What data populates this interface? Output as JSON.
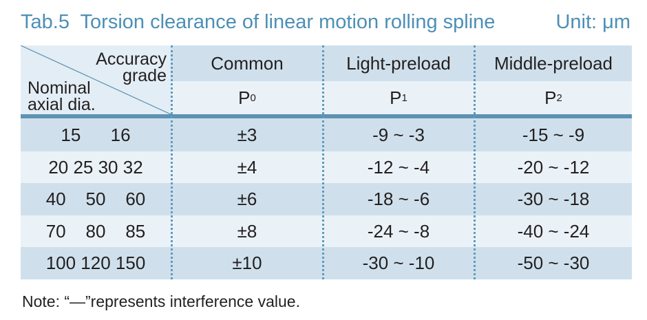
{
  "title": "Tab.5  Torsion clearance of linear motion rolling spline",
  "unit": "Unit: μm",
  "header": {
    "corner_top": "Accuracy\ngrade",
    "corner_bottom": "Nominal\naxial dia.",
    "grades": [
      {
        "name": "Common",
        "code": "P",
        "sub": "0"
      },
      {
        "name": "Light-preload",
        "code": "P",
        "sub": "1"
      },
      {
        "name": "Middle-preload",
        "code": "P",
        "sub": "2"
      }
    ]
  },
  "rows": [
    {
      "dia": "15      16",
      "common": "±3",
      "light": "-9 ~ -3",
      "middle": "-15 ~ -9"
    },
    {
      "dia": "20 25 30 32",
      "common": "±4",
      "light": "-12 ~ -4",
      "middle": "-20 ~ -12"
    },
    {
      "dia": "40    50    60",
      "common": "±6",
      "light": "-18 ~ -6",
      "middle": "-30 ~ -18"
    },
    {
      "dia": "70    80    85",
      "common": "±8",
      "light": "-24 ~ -8",
      "middle": "-40 ~ -24"
    },
    {
      "dia": "100 120 150",
      "common": "±10",
      "light": "-30 ~ -10",
      "middle": "-50 ~ -30"
    }
  ],
  "note": "Note: “—”represents interference value.",
  "colors": {
    "title": "#4d8fb5",
    "band_dark": "#cfe0ec",
    "band_light": "#eaf2f8",
    "divider": "#5d9bbd"
  }
}
